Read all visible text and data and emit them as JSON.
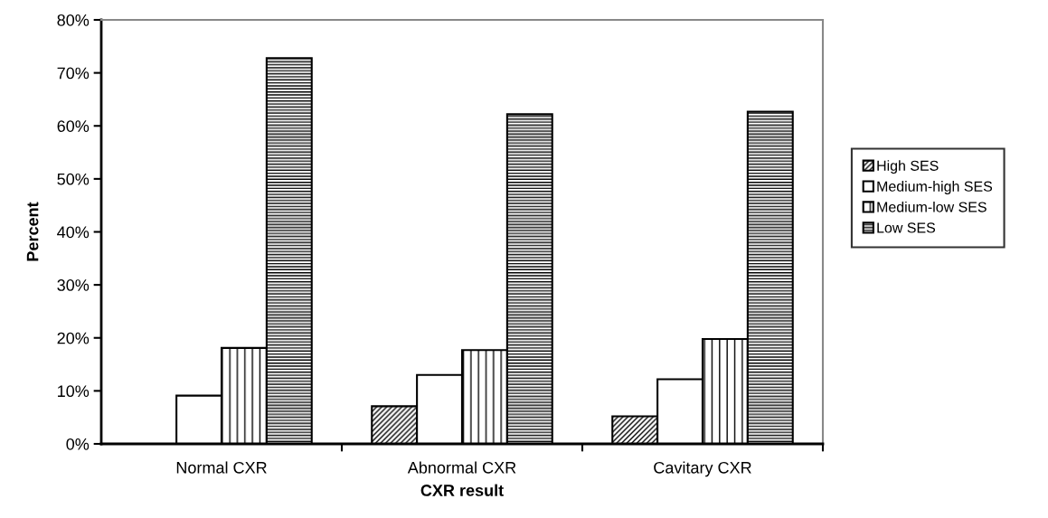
{
  "chart_data": {
    "type": "bar",
    "xlabel": "CXR result",
    "ylabel": "Percent",
    "categories": [
      "Normal CXR",
      "Abnormal CXR",
      "Cavitary CXR"
    ],
    "series": [
      {
        "name": "High SES",
        "color": "#000000",
        "values": [
          0,
          7.1,
          5.2
        ]
      },
      {
        "name": "Medium-high SES",
        "color": "#ffffff",
        "values": [
          9.1,
          13.0,
          12.2
        ]
      },
      {
        "name": "Medium-low SES",
        "color": "#000000",
        "values": [
          18.1,
          17.7,
          19.8
        ]
      },
      {
        "name": "Low SES",
        "color": "#000000",
        "values": [
          72.8,
          62.2,
          62.7
        ]
      }
    ],
    "ylim": [
      0,
      80
    ],
    "yticks": [
      {
        "value": 0,
        "label": "0%"
      },
      {
        "value": 10,
        "label": "10%"
      },
      {
        "value": 20,
        "label": "20%"
      },
      {
        "value": 30,
        "label": "30%"
      },
      {
        "value": 40,
        "label": "40%"
      },
      {
        "value": 50,
        "label": "50%"
      },
      {
        "value": 60,
        "label": "60%"
      },
      {
        "value": 70,
        "label": "70%"
      },
      {
        "value": 80,
        "label": "80%"
      }
    ],
    "grid": false,
    "legend": "right"
  }
}
